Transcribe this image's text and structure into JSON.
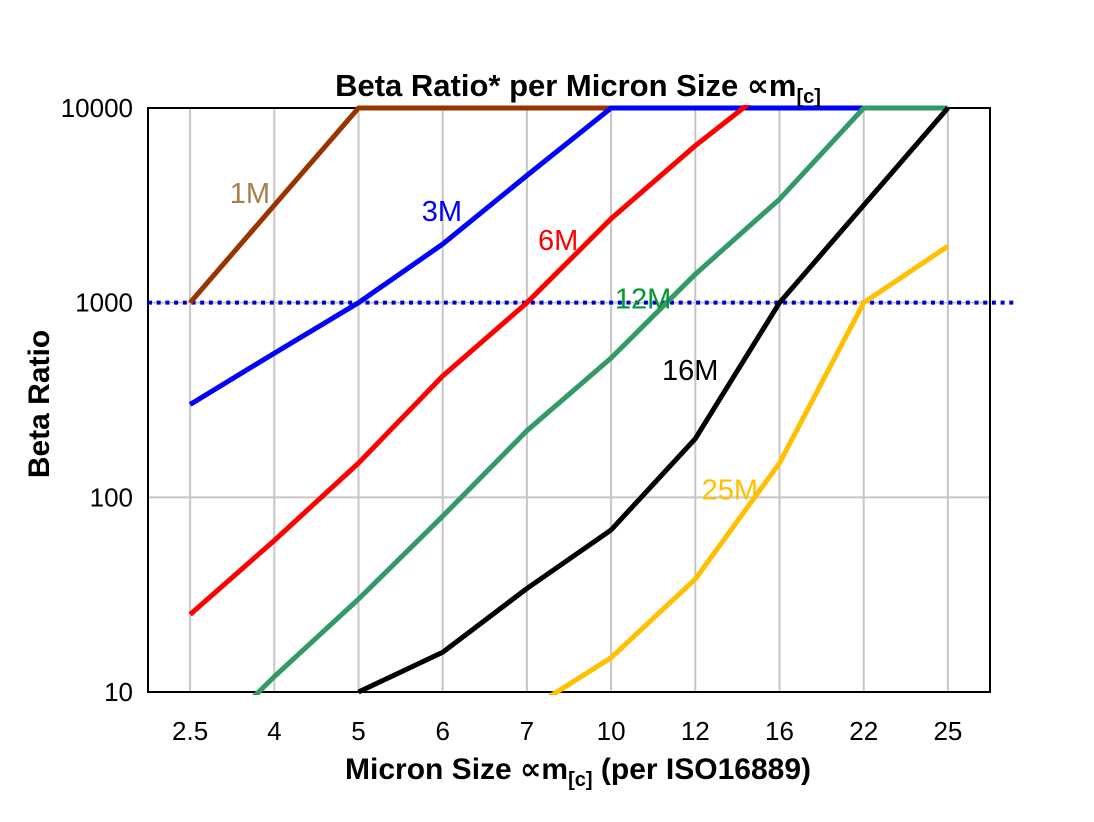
{
  "page": {
    "background": "#FFFFFF"
  },
  "chart_data": {
    "type": "line",
    "title": {
      "text": "Beta Ratio* per Micron Size ",
      "symbol": "∝m",
      "subscript": "[c]"
    },
    "xlabel": {
      "text": "Micron Size ",
      "symbol": "∝m",
      "subscript": "[c]",
      "suffix": " (per ISO16889)"
    },
    "ylabel": "Beta Ratio",
    "x_axis": {
      "categories": [
        "2.5",
        "4",
        "5",
        "6",
        "7",
        "10",
        "12",
        "16",
        "22",
        "25"
      ]
    },
    "y_axis": {
      "scale": "log",
      "min": 10,
      "max": 10000,
      "ticks": [
        "10",
        "100",
        "1000",
        "10000"
      ]
    },
    "grid": {
      "vertical": true,
      "horizontal": true,
      "color": "#C6C6C6"
    },
    "reference_line": {
      "value": 1000,
      "style": "dotted",
      "color": "#0000CC",
      "extends_past_right_edge": true
    },
    "series": [
      {
        "name": "1M",
        "color": "#993300",
        "label_color": "#A87E4B",
        "values": [
          1000,
          3162,
          10000,
          10000,
          10000,
          10000,
          null,
          null,
          null,
          null
        ]
      },
      {
        "name": "3M",
        "color": "#0000FF",
        "label_color": "#0000FF",
        "values": [
          300,
          550,
          1000,
          2000,
          4500,
          10000,
          10000,
          10000,
          10000,
          null
        ]
      },
      {
        "name": "6M",
        "color": "#FF0000",
        "label_color": "#FF0000",
        "values": [
          25,
          60,
          150,
          420,
          1000,
          2700,
          6400,
          14000,
          null,
          null
        ]
      },
      {
        "name": "12M",
        "color": "#339966",
        "label_color": "#009933",
        "values": [
          4.5,
          12,
          30,
          80,
          220,
          520,
          1400,
          3400,
          10000,
          10000
        ]
      },
      {
        "name": "16M",
        "color": "#000000",
        "label_color": "#000000",
        "values": [
          null,
          null,
          10,
          16,
          34,
          68,
          200,
          1000,
          3162,
          10000
        ]
      },
      {
        "name": "25M",
        "color": "#FFC000",
        "label_color": "#FFC000",
        "values": [
          null,
          null,
          null,
          null,
          8,
          15,
          38,
          150,
          1000,
          1950
        ]
      }
    ],
    "annotations": [
      {
        "text": "1M",
        "x_index": 0.71,
        "beta": 3650
      },
      {
        "text": "3M",
        "x_index": 2.99,
        "beta": 2950
      },
      {
        "text": "6M",
        "x_index": 4.37,
        "beta": 2100
      },
      {
        "text": "12M",
        "x_index": 5.38,
        "beta": 1050
      },
      {
        "text": "16M",
        "x_index": 5.94,
        "beta": 450
      },
      {
        "text": "25M",
        "x_index": 6.41,
        "beta": 110
      }
    ]
  }
}
